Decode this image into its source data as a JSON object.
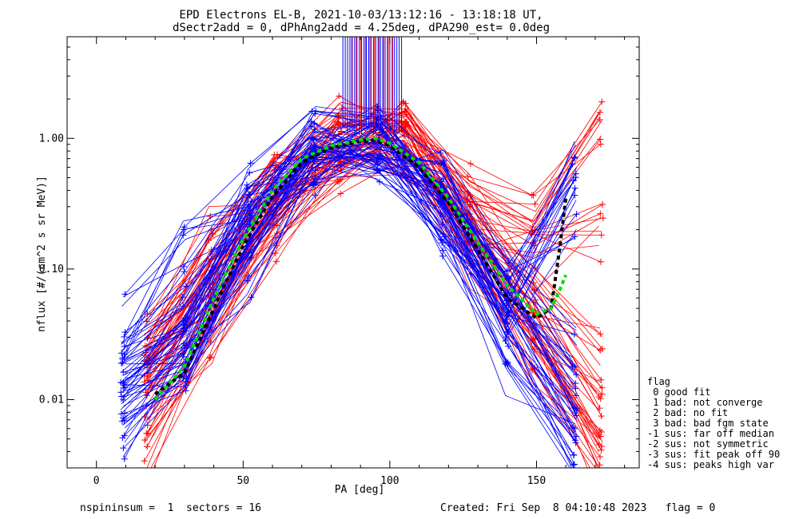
{
  "chart_data": {
    "type": "line",
    "title": "EPD Electrons EL-B, 2021-10-03/13:12:16 - 13:18:18 UT,",
    "subtitle": "dSectr2add = 0, dPhAng2add = 4.25deg, dPA290_est=    0.0deg",
    "xlabel": "PA [deg]",
    "ylabel": "nflux [#/(cm^2 s sr MeV)]",
    "xlim": [
      -10,
      185
    ],
    "ylim": [
      0.003,
      6.0
    ],
    "yscale": "log",
    "x_ticks": [
      {
        "value": 0,
        "label": "0"
      },
      {
        "value": 50,
        "label": "50"
      },
      {
        "value": 100,
        "label": "100"
      },
      {
        "value": 150,
        "label": "150"
      }
    ],
    "y_ticks": [
      {
        "value": 0.01,
        "label": "0.01"
      },
      {
        "value": 0.1,
        "label": "0.10"
      },
      {
        "value": 1.0,
        "label": "1.00"
      }
    ],
    "series": [
      {
        "color": "#0000ff",
        "style": "line-plus",
        "x": [
          9,
          30,
          52,
          74,
          96,
          118,
          140,
          163
        ],
        "profiles": [
          [
            0.012,
            0.028,
            0.22,
            0.85,
            0.98,
            0.38,
            0.055,
            0.012
          ],
          [
            0.008,
            0.02,
            0.15,
            0.7,
            0.9,
            0.28,
            0.035,
            0.006
          ],
          [
            0.02,
            0.045,
            0.32,
            0.95,
            1.02,
            0.45,
            0.08,
            0.02
          ],
          [
            0.035,
            0.13,
            0.36,
            0.9,
            0.95,
            0.25,
            0.05,
            0.6
          ],
          [
            0.005,
            0.015,
            0.1,
            0.6,
            0.85,
            0.2,
            0.02,
            0.004
          ],
          [
            0.016,
            0.035,
            0.27,
            0.8,
            0.92,
            0.33,
            0.06,
            0.3
          ]
        ]
      },
      {
        "color": "#ff0000",
        "style": "line-plus",
        "x": [
          17,
          39,
          61,
          83,
          105,
          127,
          149,
          172
        ],
        "profiles": [
          [
            0.012,
            0.07,
            0.38,
            0.9,
            0.95,
            0.22,
            0.045,
            0.008
          ],
          [
            0.008,
            0.05,
            0.28,
            0.8,
            0.9,
            0.18,
            0.03,
            0.004
          ],
          [
            0.02,
            0.1,
            0.45,
            1.05,
            1.05,
            0.3,
            0.07,
            0.02
          ],
          [
            0.025,
            0.17,
            0.4,
            1.2,
            1.2,
            0.42,
            0.2,
            1.15
          ],
          [
            0.004,
            0.035,
            0.2,
            0.7,
            0.8,
            0.13,
            0.02,
            0.003
          ],
          [
            0.015,
            0.08,
            0.34,
            0.85,
            0.92,
            0.25,
            0.12,
            0.21
          ]
        ]
      },
      {
        "color": "#000000",
        "style": "dashed-fit",
        "x": [
          20,
          30,
          40,
          50,
          60,
          70,
          80,
          90,
          95,
          100,
          110,
          120,
          130,
          140,
          150,
          155,
          158,
          160
        ],
        "y": [
          0.011,
          0.016,
          0.05,
          0.15,
          0.36,
          0.65,
          0.85,
          0.95,
          0.97,
          0.88,
          0.6,
          0.32,
          0.14,
          0.06,
          0.042,
          0.05,
          0.15,
          0.35
        ]
      },
      {
        "color": "#00dd00",
        "style": "dashed-fit",
        "x": [
          20,
          30,
          40,
          50,
          60,
          70,
          80,
          90,
          95,
          100,
          110,
          120,
          130,
          140,
          150,
          155,
          158,
          160
        ],
        "y": [
          0.01,
          0.018,
          0.06,
          0.17,
          0.4,
          0.7,
          0.88,
          0.97,
          1.0,
          0.92,
          0.65,
          0.35,
          0.16,
          0.075,
          0.045,
          0.05,
          0.07,
          0.09
        ]
      }
    ],
    "blue_spike_region": [
      84,
      104
    ],
    "red_spike_region": [
      87,
      101
    ]
  },
  "legend": {
    "heading": "flag",
    "items": [
      " 0 good fit",
      " 1 bad: not converge",
      " 2 bad: no fit",
      " 3 bad: bad fgm state",
      "-1 sus: far off median",
      "-2 sus: not symmetric",
      "-3 sus: fit peak off 90",
      "-4 sus: peaks high var"
    ]
  },
  "footer": {
    "left": "nspininsum =  1  sectors = 16",
    "right": "Created: Fri Sep  8 04:10:48 2023   flag = 0"
  }
}
